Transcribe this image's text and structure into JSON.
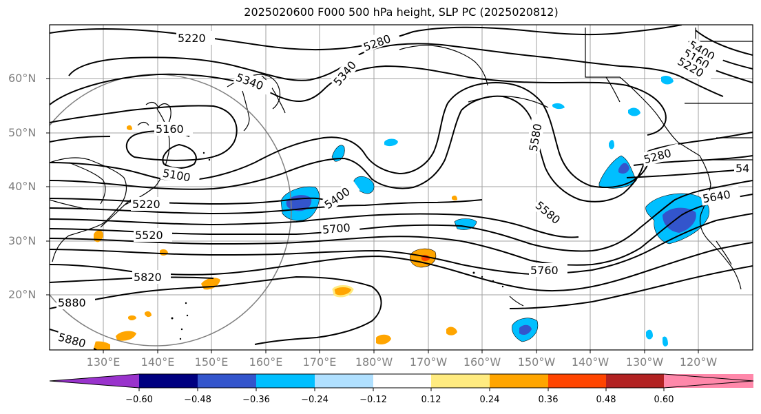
{
  "title": "2025020600 F000 500 hPa height, SLP PC (2025020812)",
  "lat_labels": [
    "60°N",
    "50°N",
    "40°N",
    "30°N",
    "20°N"
  ],
  "lon_labels": [
    "130°E",
    "140°E",
    "150°E",
    "160°E",
    "170°E",
    "180°W",
    "170°W",
    "160°W",
    "150°W",
    "140°W",
    "130°W",
    "120°W"
  ],
  "contour_labels": [
    "5220",
    "5280",
    "5340",
    "5340",
    "5160",
    "5100",
    "5220",
    "5400",
    "5520",
    "5700",
    "5820",
    "5880",
    "5880",
    "5580",
    "5580",
    "5760",
    "5400",
    "5160",
    "5220",
    "5280",
    "54",
    "5640"
  ],
  "colorbar": {
    "ticks": [
      "−0.60",
      "−0.48",
      "−0.36",
      "−0.24",
      "−0.12",
      "0.12",
      "0.24",
      "0.36",
      "0.48",
      "0.60"
    ],
    "colors": [
      "#9933cc",
      "#000080",
      "#3355cc",
      "#00bfff",
      "#b0e0ff",
      "#ffffff",
      "#ffeb80",
      "#ffa500",
      "#ff4500",
      "#b22222",
      "#ff88aa"
    ]
  }
}
